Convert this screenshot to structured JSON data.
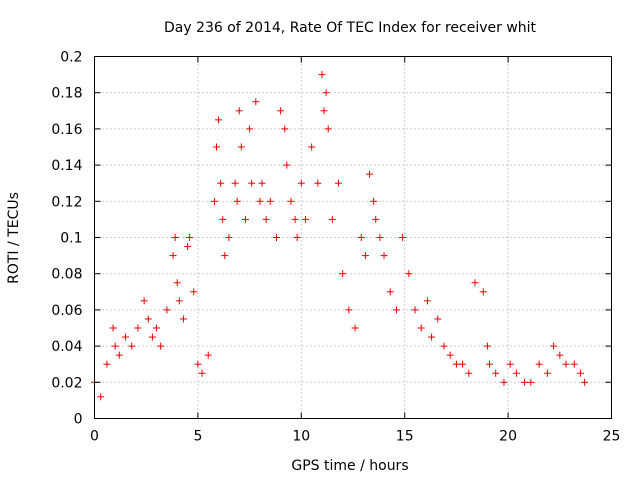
{
  "chart_data": {
    "type": "scatter",
    "title": "Day 236 of 2014, Rate Of TEC Index for receiver whit",
    "xlabel": "GPS time / hours",
    "ylabel": "ROTI / TECUs",
    "xlim": [
      0,
      25
    ],
    "ylim": [
      0,
      0.2
    ],
    "x_ticks": [
      "0",
      "5",
      "10",
      "15",
      "20",
      "25"
    ],
    "y_ticks": [
      "0",
      "0.02",
      "0.04",
      "0.06",
      "0.08",
      "0.1",
      "0.12",
      "0.14",
      "0.16",
      "0.18",
      "0.2"
    ],
    "grid": true,
    "marker": "+",
    "color": "#ee0000",
    "series": [
      {
        "note_values": "approximate points traced from the plot (hour, ROTI)",
        "x": [
          0.0,
          0.3,
          0.6,
          0.9,
          1.0,
          1.2,
          1.5,
          1.8,
          2.1,
          2.4,
          2.6,
          2.8,
          3.0,
          3.2,
          3.5,
          3.8,
          3.9,
          4.0,
          4.1,
          4.3,
          4.5,
          4.6,
          4.8,
          5.0,
          5.2,
          5.5,
          5.8,
          5.9,
          6.0,
          6.1,
          6.2,
          6.3,
          6.5,
          6.8,
          6.9,
          7.0,
          7.1,
          7.3,
          7.5,
          7.6,
          7.8,
          8.0,
          8.1,
          8.3,
          8.5,
          8.8,
          9.0,
          9.2,
          9.3,
          9.5,
          9.7,
          9.8,
          10.0,
          10.2,
          10.5,
          10.8,
          11.0,
          11.1,
          11.2,
          11.3,
          11.5,
          11.8,
          12.0,
          12.3,
          12.6,
          12.9,
          13.1,
          13.3,
          13.5,
          13.6,
          13.8,
          14.0,
          14.3,
          14.6,
          14.9,
          15.2,
          15.5,
          15.8,
          16.1,
          16.3,
          16.6,
          16.9,
          17.2,
          17.5,
          17.8,
          18.1,
          18.4,
          18.8,
          19.0,
          19.1,
          19.4,
          19.8,
          20.1,
          20.4,
          20.8,
          21.1,
          21.5,
          21.9,
          22.2,
          22.5,
          22.8,
          23.2,
          23.5,
          23.7
        ],
        "y": [
          0.02,
          0.012,
          0.03,
          0.05,
          0.04,
          0.035,
          0.045,
          0.04,
          0.05,
          0.065,
          0.055,
          0.045,
          0.05,
          0.04,
          0.06,
          0.09,
          0.1,
          0.075,
          0.065,
          0.055,
          0.095,
          0.1,
          0.07,
          0.03,
          0.025,
          0.035,
          0.12,
          0.15,
          0.165,
          0.13,
          0.11,
          0.09,
          0.1,
          0.13,
          0.12,
          0.17,
          0.15,
          0.11,
          0.16,
          0.13,
          0.175,
          0.12,
          0.13,
          0.11,
          0.12,
          0.1,
          0.17,
          0.16,
          0.14,
          0.12,
          0.11,
          0.1,
          0.13,
          0.11,
          0.15,
          0.13,
          0.19,
          0.17,
          0.18,
          0.16,
          0.11,
          0.13,
          0.08,
          0.06,
          0.05,
          0.1,
          0.09,
          0.135,
          0.12,
          0.11,
          0.1,
          0.09,
          0.07,
          0.06,
          0.1,
          0.08,
          0.06,
          0.05,
          0.065,
          0.045,
          0.055,
          0.04,
          0.035,
          0.03,
          0.03,
          0.025,
          0.075,
          0.07,
          0.04,
          0.03,
          0.025,
          0.02,
          0.03,
          0.025,
          0.02,
          0.02,
          0.03,
          0.025,
          0.04,
          0.035,
          0.03,
          0.03,
          0.025,
          0.02
        ]
      }
    ]
  }
}
